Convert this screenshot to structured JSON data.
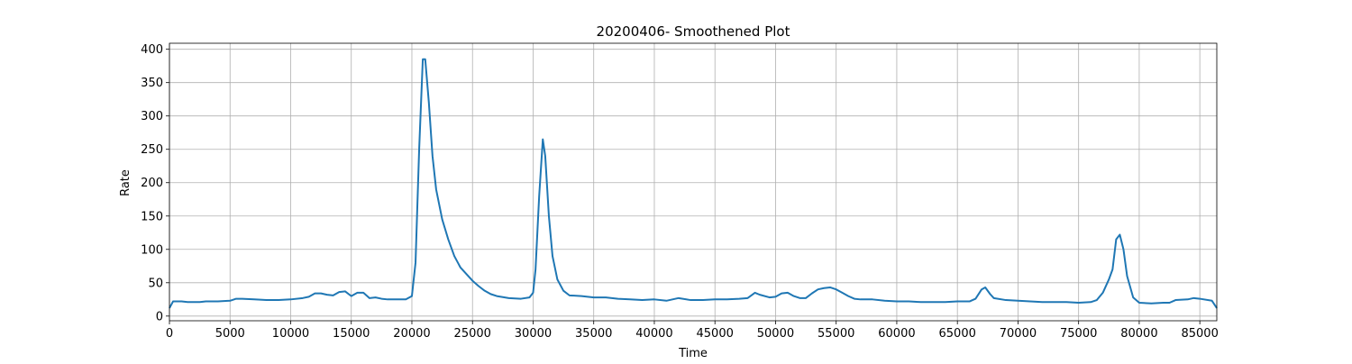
{
  "chart_data": {
    "type": "line",
    "title": "20200406- Smoothened Plot",
    "x_label": "Time",
    "y_label": "Rate",
    "x": [
      0,
      300,
      1000,
      1500,
      2500,
      3000,
      4000,
      5000,
      5500,
      6000,
      7000,
      8000,
      9000,
      10000,
      11000,
      11500,
      12000,
      12500,
      13000,
      13500,
      14000,
      14500,
      15000,
      15500,
      16000,
      16500,
      17000,
      17500,
      18000,
      19000,
      19500,
      20000,
      20300,
      20600,
      20900,
      21100,
      21400,
      21700,
      22000,
      22500,
      23000,
      23500,
      24000,
      24500,
      25000,
      25500,
      26000,
      26500,
      27000,
      28000,
      29000,
      29700,
      30000,
      30200,
      30500,
      30800,
      31000,
      31300,
      31600,
      32000,
      32500,
      33000,
      34000,
      35000,
      36000,
      37000,
      38000,
      39000,
      40000,
      41000,
      42000,
      43000,
      44000,
      45000,
      46000,
      47000,
      47700,
      48300,
      48700,
      49500,
      50000,
      50500,
      51000,
      51500,
      52000,
      52500,
      53000,
      53500,
      54000,
      54500,
      55000,
      55500,
      56000,
      56500,
      57000,
      58000,
      59000,
      60000,
      61000,
      62000,
      63000,
      64000,
      65000,
      66000,
      66500,
      67000,
      67300,
      67700,
      68000,
      69000,
      70000,
      71000,
      72000,
      73000,
      74000,
      75000,
      76000,
      76500,
      77000,
      77500,
      77800,
      78100,
      78400,
      78700,
      79000,
      79500,
      80000,
      81000,
      82000,
      82500,
      83000,
      84000,
      84500,
      85000,
      86000,
      86400
    ],
    "values": [
      12,
      22,
      22,
      21,
      21,
      22,
      22,
      23,
      26,
      26,
      25,
      24,
      24,
      25,
      27,
      29,
      34,
      34,
      32,
      31,
      36,
      37,
      30,
      35,
      35,
      27,
      28,
      26,
      25,
      25,
      25,
      30,
      80,
      250,
      385,
      385,
      320,
      240,
      190,
      145,
      115,
      90,
      73,
      63,
      53,
      45,
      38,
      33,
      30,
      27,
      26,
      28,
      35,
      70,
      180,
      265,
      240,
      150,
      90,
      55,
      38,
      31,
      30,
      28,
      28,
      26,
      25,
      24,
      25,
      23,
      27,
      24,
      24,
      25,
      25,
      26,
      27,
      35,
      32,
      28,
      29,
      34,
      35,
      30,
      27,
      27,
      34,
      40,
      42,
      43,
      40,
      35,
      30,
      26,
      25,
      25,
      23,
      22,
      22,
      21,
      21,
      21,
      22,
      22,
      26,
      40,
      43,
      33,
      27,
      24,
      23,
      22,
      21,
      21,
      21,
      20,
      21,
      24,
      35,
      55,
      70,
      115,
      122,
      100,
      60,
      28,
      20,
      19,
      20,
      20,
      24,
      25,
      27,
      26,
      23,
      12
    ],
    "color": "#1f77b4",
    "xlim": [
      0,
      86400
    ],
    "xticks": [
      0,
      5000,
      10000,
      15000,
      20000,
      25000,
      30000,
      35000,
      40000,
      45000,
      50000,
      55000,
      60000,
      65000,
      70000,
      75000,
      80000,
      85000
    ],
    "ylim": [
      -7,
      409
    ],
    "yticks": [
      0,
      50,
      100,
      150,
      200,
      250,
      300,
      350,
      400
    ],
    "grid": true
  }
}
